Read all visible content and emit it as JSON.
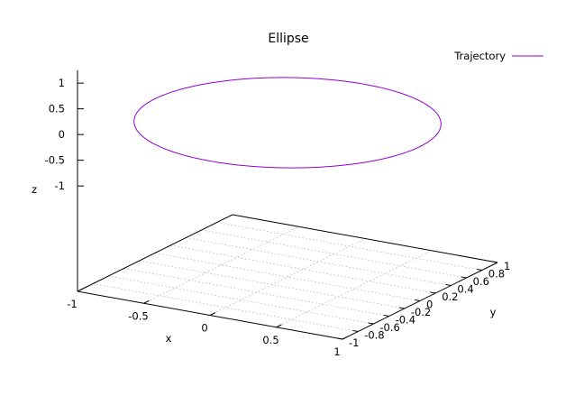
{
  "chart_data": {
    "type": "line",
    "projection": "3d",
    "title": "Ellipse",
    "xlabel": "x",
    "ylabel": "y",
    "zlabel": "z",
    "xlim": [
      -1,
      1
    ],
    "ylim": [
      -1,
      1
    ],
    "zlim": [
      -1,
      1
    ],
    "x_ticks": [
      "-1",
      "-0.5",
      "0",
      "0.5",
      "1"
    ],
    "y_ticks": [
      "-1",
      "-0.8",
      "-0.6",
      "-0.4",
      "-0.2",
      "0",
      "0.2",
      "0.4",
      "0.6",
      "0.8",
      "1"
    ],
    "z_ticks": [
      "-1",
      "-0.5",
      "0",
      "0.5",
      "1"
    ],
    "grid": true,
    "legend": {
      "position": "top-right",
      "entries": [
        "Trajectory"
      ]
    },
    "series": [
      {
        "name": "Trajectory",
        "color": "#9400d3",
        "curve": "ellipse in the plane z = 2, centered at (0, 0), semi-axes 1 along x and 1 along y",
        "center": [
          0,
          0,
          2
        ],
        "semi_axis_x": 1,
        "semi_axis_y": 1
      }
    ]
  }
}
